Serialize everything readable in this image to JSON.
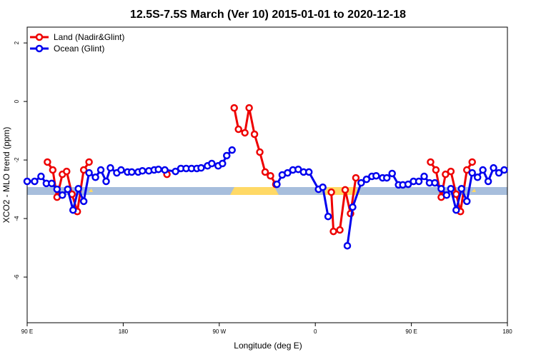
{
  "chart_data": {
    "type": "line",
    "title": "12.5S-7.5S March (Ver 10)   2015-01-01 to 2020-12-18",
    "xlabel": "Longitude (deg E)",
    "ylabel": "XCO2 - MLO trend (ppm)",
    "xlim": [
      90,
      540
    ],
    "ylim": [
      -7.56,
      2.54
    ],
    "xticks": [
      {
        "value": 90,
        "label": "90 E"
      },
      180,
      {
        "value": 270,
        "label": "90 W"
      },
      {
        "value": 360,
        "label": "0"
      },
      {
        "value": 450,
        "label": "90 E"
      },
      {
        "value": 540,
        "label": "180"
      }
    ],
    "yticks": [
      -6,
      -4,
      -2,
      0,
      2
    ],
    "legend": "upper left",
    "series": [
      {
        "name": "Land (Nadir&Glint)",
        "color": "#ee0000",
        "x": [
          109,
          114,
          118,
          123,
          127,
          132,
          137,
          143,
          148,
          180,
          221,
          250,
          284,
          288,
          294,
          298,
          303,
          308,
          313,
          318,
          323,
          350,
          375,
          377,
          383,
          388,
          393,
          398,
          430,
          468,
          473,
          478,
          482,
          487,
          492,
          496,
          502,
          507
        ],
        "values": [
          -2.07,
          -2.34,
          -3.27,
          -2.49,
          -2.39,
          -3.17,
          -3.76,
          -2.34,
          -2.07,
          null,
          -2.49,
          null,
          -0.22,
          -0.95,
          -1.07,
          -0.22,
          -1.12,
          -1.73,
          -2.41,
          -2.54,
          -2.83,
          null,
          -3.1,
          -4.44,
          -4.39,
          -3.02,
          -3.83,
          -2.61,
          null,
          -2.07,
          -2.34,
          -3.27,
          -2.49,
          -2.39,
          -3.17,
          -3.76,
          -2.34,
          -2.07
        ]
      },
      {
        "name": "Ocean (Glint)",
        "color": "#0000ee",
        "x": [
          90,
          97,
          103,
          108,
          113,
          118,
          123,
          128,
          133,
          138,
          143,
          148,
          154,
          159,
          164,
          168,
          174,
          178,
          184,
          188,
          194,
          198,
          204,
          209,
          213,
          219,
          229,
          234,
          239,
          244,
          249,
          253,
          259,
          263,
          269,
          273,
          277,
          282,
          300,
          324,
          329,
          334,
          339,
          344,
          349,
          354,
          363,
          367,
          372,
          380,
          390,
          395,
          403,
          408,
          413,
          417,
          423,
          427,
          432,
          438,
          442,
          447,
          452,
          457,
          462,
          467,
          472,
          478,
          483,
          487,
          492,
          497,
          502,
          507,
          512,
          517,
          522,
          527,
          532,
          537
        ],
        "values": [
          -2.73,
          -2.73,
          -2.56,
          -2.8,
          -2.8,
          -3.0,
          -3.2,
          -3.0,
          -3.71,
          -2.98,
          -3.41,
          -2.44,
          -2.59,
          -2.34,
          -2.73,
          -2.27,
          -2.44,
          -2.34,
          -2.41,
          -2.41,
          -2.41,
          -2.37,
          -2.37,
          -2.34,
          -2.32,
          -2.34,
          -2.39,
          -2.29,
          -2.29,
          -2.29,
          -2.29,
          -2.27,
          -2.2,
          -2.12,
          -2.2,
          -2.12,
          -1.85,
          -1.66,
          null,
          -2.83,
          -2.51,
          -2.44,
          -2.34,
          -2.32,
          -2.41,
          -2.41,
          -3.0,
          -2.93,
          -3.93,
          null,
          -4.93,
          -3.61,
          -2.78,
          -2.66,
          -2.56,
          -2.54,
          -2.61,
          -2.61,
          -2.46,
          -2.85,
          -2.85,
          -2.83,
          -2.73,
          -2.73,
          -2.56,
          -2.78,
          -2.78,
          -2.98,
          -3.2,
          -2.98,
          -3.71,
          -2.98,
          -3.41,
          -2.44,
          -2.59,
          -2.34,
          -2.73,
          -2.27,
          -2.44,
          -2.34
        ]
      }
    ]
  }
}
